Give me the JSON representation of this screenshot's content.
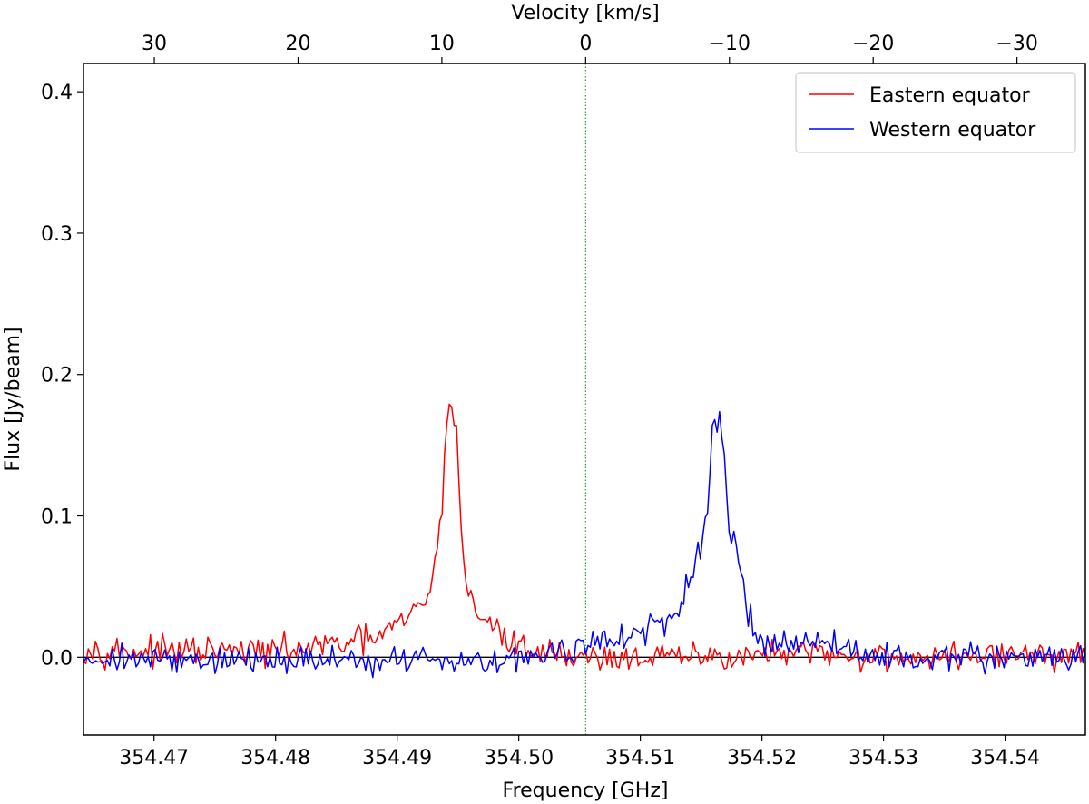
{
  "chart_data": {
    "type": "line",
    "title": "",
    "xlabel": "Frequency [GHz]",
    "ylabel": "Flux [Jy/beam]",
    "top_xlabel": "Velocity [km/s]",
    "xlim": [
      354.4642,
      354.5466
    ],
    "ylim": [
      -0.055,
      0.42
    ],
    "x_ticks": [
      354.47,
      354.48,
      354.49,
      354.5,
      354.51,
      354.52,
      354.53,
      354.54
    ],
    "x_tick_labels": [
      "354.47",
      "354.48",
      "354.49",
      "354.50",
      "354.51",
      "354.52",
      "354.53",
      "354.54"
    ],
    "y_ticks": [
      0.0,
      0.1,
      0.2,
      0.3,
      0.4
    ],
    "y_tick_labels": [
      "0.0",
      "0.1",
      "0.2",
      "0.3",
      "0.4"
    ],
    "top_ticks_velocity": [
      30,
      20,
      10,
      0,
      -10,
      -20,
      -30
    ],
    "top_tick_labels": [
      "30",
      "20",
      "10",
      "0",
      "−10",
      "−20",
      "−30"
    ],
    "rest_frequency": 354.5055,
    "vertical_line": {
      "x": 354.5055,
      "color": "#2ca02c",
      "style": "dotted"
    },
    "horizontal_line": {
      "y": 0.0,
      "color": "#000000"
    },
    "legend": {
      "position": "top-right",
      "entries": [
        "Eastern equator",
        "Western equator"
      ]
    },
    "grid": false,
    "noise_amplitude": 0.006,
    "series": [
      {
        "name": "Eastern equator",
        "color": "#ff0000",
        "x": [
          354.4642,
          354.47,
          354.48,
          354.486,
          354.488,
          354.49,
          354.4915,
          354.4925,
          354.4935,
          354.494,
          354.4943,
          354.4946,
          354.495,
          354.4955,
          354.4962,
          354.497,
          354.498,
          354.499,
          354.5,
          354.502,
          354.504,
          354.506,
          354.51,
          354.515,
          354.52,
          354.525,
          354.53,
          354.535,
          354.54,
          354.5466
        ],
        "values": [
          0.006,
          0.004,
          0.004,
          0.01,
          0.013,
          0.022,
          0.032,
          0.042,
          0.085,
          0.15,
          0.188,
          0.187,
          0.14,
          0.06,
          0.035,
          0.03,
          0.02,
          0.012,
          0.008,
          0.004,
          0.002,
          0.0,
          0.0,
          0.0,
          0.002,
          0.002,
          0.0,
          0.0,
          0.002,
          0.0
        ]
      },
      {
        "name": "Western equator",
        "color": "#0000ff",
        "x": [
          354.4642,
          354.47,
          354.48,
          354.49,
          354.495,
          354.5,
          354.504,
          354.507,
          354.51,
          354.512,
          354.513,
          354.514,
          354.515,
          354.5155,
          354.516,
          354.5163,
          354.5167,
          354.5172,
          354.518,
          354.519,
          354.52,
          354.522,
          354.525,
          354.528,
          354.53,
          354.54,
          354.5466
        ],
        "values": [
          0.0,
          -0.002,
          -0.002,
          -0.002,
          -0.002,
          0.0,
          0.004,
          0.012,
          0.018,
          0.022,
          0.03,
          0.05,
          0.07,
          0.11,
          0.16,
          0.173,
          0.15,
          0.105,
          0.07,
          0.03,
          0.012,
          0.01,
          0.01,
          0.004,
          0.0,
          0.0,
          0.0
        ]
      }
    ]
  }
}
